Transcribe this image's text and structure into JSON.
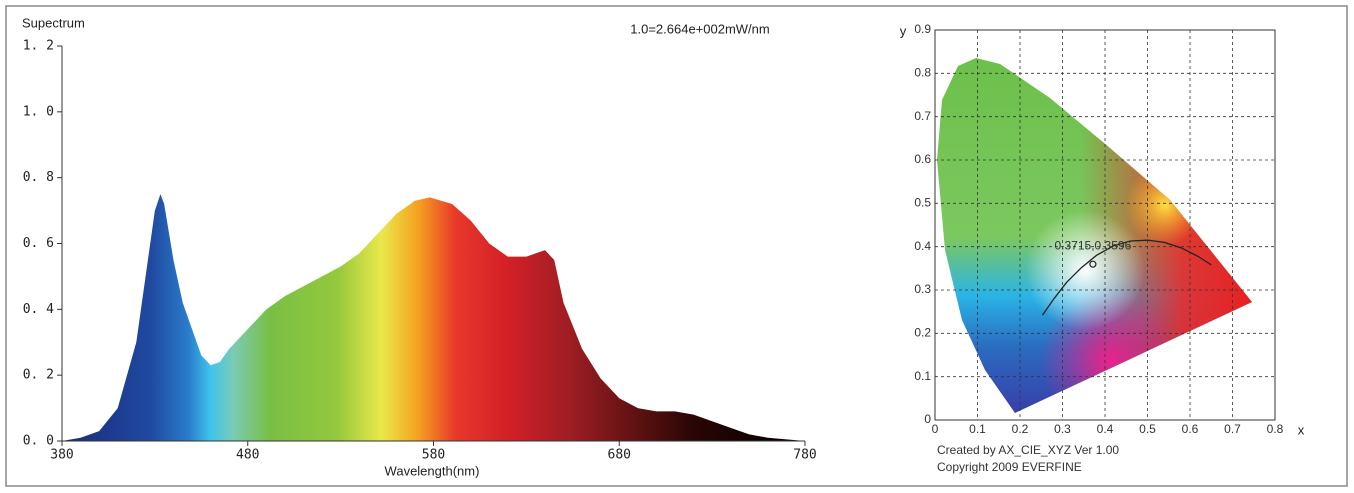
{
  "chart_data": [
    {
      "type": "area",
      "title": "Supectrum",
      "annotation": "1.0=2.664e+002mW/nm",
      "x_label": "Wavelength(nm)",
      "x": [
        380,
        390,
        400,
        410,
        420,
        425,
        430,
        433,
        435,
        440,
        445,
        450,
        455,
        460,
        465,
        470,
        480,
        490,
        500,
        510,
        520,
        530,
        540,
        550,
        560,
        570,
        578,
        590,
        600,
        610,
        620,
        630,
        640,
        645,
        650,
        660,
        670,
        680,
        690,
        700,
        710,
        720,
        730,
        740,
        750,
        760,
        770,
        780
      ],
      "values": [
        0,
        0.01,
        0.03,
        0.1,
        0.3,
        0.5,
        0.7,
        0.75,
        0.72,
        0.55,
        0.42,
        0.34,
        0.26,
        0.23,
        0.24,
        0.28,
        0.34,
        0.4,
        0.44,
        0.47,
        0.5,
        0.53,
        0.57,
        0.63,
        0.69,
        0.73,
        0.74,
        0.72,
        0.67,
        0.6,
        0.56,
        0.56,
        0.58,
        0.55,
        0.42,
        0.28,
        0.19,
        0.13,
        0.1,
        0.09,
        0.09,
        0.08,
        0.06,
        0.04,
        0.02,
        0.01,
        0.005,
        0
      ],
      "xlim": [
        380,
        780
      ],
      "xticks": [
        380,
        480,
        580,
        680,
        780
      ],
      "ylim": [
        0,
        1.2
      ],
      "yticks": [
        {
          "value": 0,
          "label": "0. 0"
        },
        {
          "value": 0.2,
          "label": "0. 2"
        },
        {
          "value": 0.4,
          "label": "0. 4"
        },
        {
          "value": 0.6,
          "label": "0. 6"
        },
        {
          "value": 0.8,
          "label": "0. 8"
        },
        {
          "value": 1.0,
          "label": "1. 0"
        },
        {
          "value": 1.2,
          "label": "1. 2"
        }
      ],
      "grid": false
    },
    {
      "type": "scatter",
      "x_label": "x",
      "y_label": "y",
      "x": [
        0.3715
      ],
      "y": [
        0.3596
      ],
      "value_labels": [
        "0.3715,0.3596"
      ],
      "locus": {
        "x": [
          0.253,
          0.28,
          0.31,
          0.345,
          0.38,
          0.42,
          0.46,
          0.5,
          0.54,
          0.58,
          0.62,
          0.65
        ],
        "y": [
          0.242,
          0.28,
          0.318,
          0.352,
          0.38,
          0.402,
          0.413,
          0.415,
          0.41,
          0.397,
          0.377,
          0.358
        ]
      },
      "xlim": [
        0,
        0.8
      ],
      "xticks": [
        0,
        0.1,
        0.2,
        0.3,
        0.4,
        0.5,
        0.6,
        0.7,
        0.8
      ],
      "ylim": [
        0,
        0.9
      ],
      "yticks": [
        0,
        0.1,
        0.2,
        0.3,
        0.4,
        0.5,
        0.6,
        0.7,
        0.8,
        0.9
      ],
      "grid": true,
      "notes": [
        "Created by AX_CIE_XYZ Ver 1.00",
        "Copyright 2009 EVERFINE"
      ]
    }
  ]
}
